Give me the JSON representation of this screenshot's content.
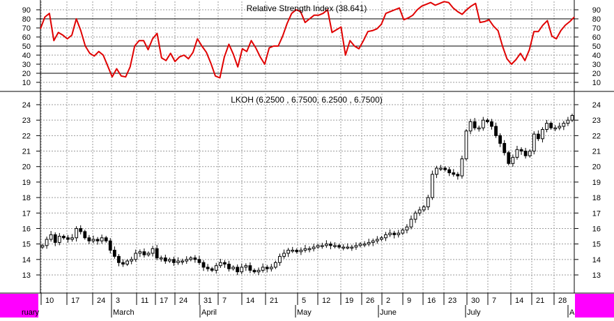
{
  "chart_data": [
    {
      "type": "line",
      "title": "Relative Strength Index (38.641)",
      "ylim": [
        0,
        100
      ],
      "yticks": [
        10,
        20,
        30,
        40,
        50,
        60,
        70,
        80,
        90
      ],
      "reference_lines": [
        20,
        50,
        80
      ],
      "grid": true,
      "series": [
        {
          "color": "#e00000",
          "values": [
            69,
            82,
            86,
            56,
            65,
            62,
            58,
            62,
            80,
            67,
            50,
            42,
            39,
            44,
            40,
            28,
            16,
            25,
            17,
            16,
            27,
            50,
            56,
            56,
            46,
            58,
            64,
            37,
            34,
            42,
            33,
            38,
            40,
            36,
            43,
            58,
            50,
            43,
            31,
            17,
            15,
            38,
            52,
            41,
            27,
            47,
            44,
            56,
            48,
            38,
            30,
            48,
            50,
            50,
            61,
            75,
            86,
            90,
            88,
            76,
            80,
            84,
            84,
            86,
            90,
            65,
            68,
            71,
            40,
            56,
            50,
            47,
            56,
            66,
            67,
            69,
            74,
            86,
            88,
            90,
            92,
            79,
            81,
            84,
            90,
            94,
            96,
            98,
            95,
            97,
            99,
            98,
            92,
            88,
            85,
            90,
            94,
            97,
            76,
            77,
            79,
            72,
            67,
            50,
            36,
            30,
            35,
            42,
            34,
            46,
            66,
            66,
            73,
            78,
            61,
            58,
            67,
            73,
            77,
            82
          ]
        }
      ]
    },
    {
      "type": "candlestick",
      "title": "LKOH (6.2500 , 6.7500, 6.2500 , 6.7500)",
      "ylim": [
        12,
        24.5
      ],
      "yticks": [
        13,
        14,
        15,
        16,
        17,
        18,
        19,
        20,
        21,
        22,
        23,
        24
      ],
      "grid": true,
      "x_day_labels": [
        "10",
        "17",
        "24",
        "3",
        "11",
        "17",
        "24",
        "31",
        "7",
        "14",
        "21",
        "5",
        "12",
        "19",
        "26",
        "2",
        "9",
        "16",
        "23",
        "30",
        "7",
        "14",
        "21",
        "28"
      ],
      "x_month_labels": [
        "ruary",
        "March",
        "April",
        "May",
        "June",
        "July",
        "A"
      ],
      "close": [
        14.9,
        15.3,
        15.6,
        15.1,
        15.5,
        15.4,
        15.3,
        15.4,
        16.0,
        15.8,
        15.4,
        15.2,
        15.3,
        15.2,
        15.4,
        15.2,
        14.6,
        14.2,
        13.8,
        13.7,
        13.9,
        14.0,
        14.4,
        14.5,
        14.3,
        14.4,
        14.7,
        14.1,
        14.1,
        13.9,
        14.0,
        13.8,
        13.9,
        13.9,
        14.0,
        14.1,
        14.0,
        13.8,
        13.5,
        13.4,
        13.3,
        13.6,
        13.8,
        13.7,
        13.4,
        13.5,
        13.2,
        13.5,
        13.6,
        13.3,
        13.2,
        13.3,
        13.5,
        13.4,
        13.5,
        13.8,
        14.2,
        14.4,
        14.6,
        14.6,
        14.5,
        14.6,
        14.7,
        14.7,
        14.8,
        14.9,
        14.9,
        15.0,
        14.9,
        14.9,
        14.8,
        14.8,
        14.8,
        14.8,
        14.9,
        15.0,
        15.0,
        15.1,
        15.2,
        15.3,
        15.4,
        15.6,
        15.7,
        15.6,
        15.7,
        15.9,
        16.1,
        16.6,
        17.0,
        17.2,
        17.4,
        18.0,
        19.5,
        19.9,
        19.9,
        19.8,
        19.6,
        19.5,
        19.4,
        20.5,
        22.3,
        22.9,
        22.5,
        22.5,
        23.0,
        22.9,
        22.6,
        22.0,
        21.5,
        20.9,
        20.2,
        20.6,
        21.1,
        21.0,
        20.7,
        21.0,
        22.1,
        21.8,
        22.4,
        22.8,
        22.5,
        22.5,
        22.6,
        22.8,
        23.0,
        23.3
      ]
    }
  ]
}
